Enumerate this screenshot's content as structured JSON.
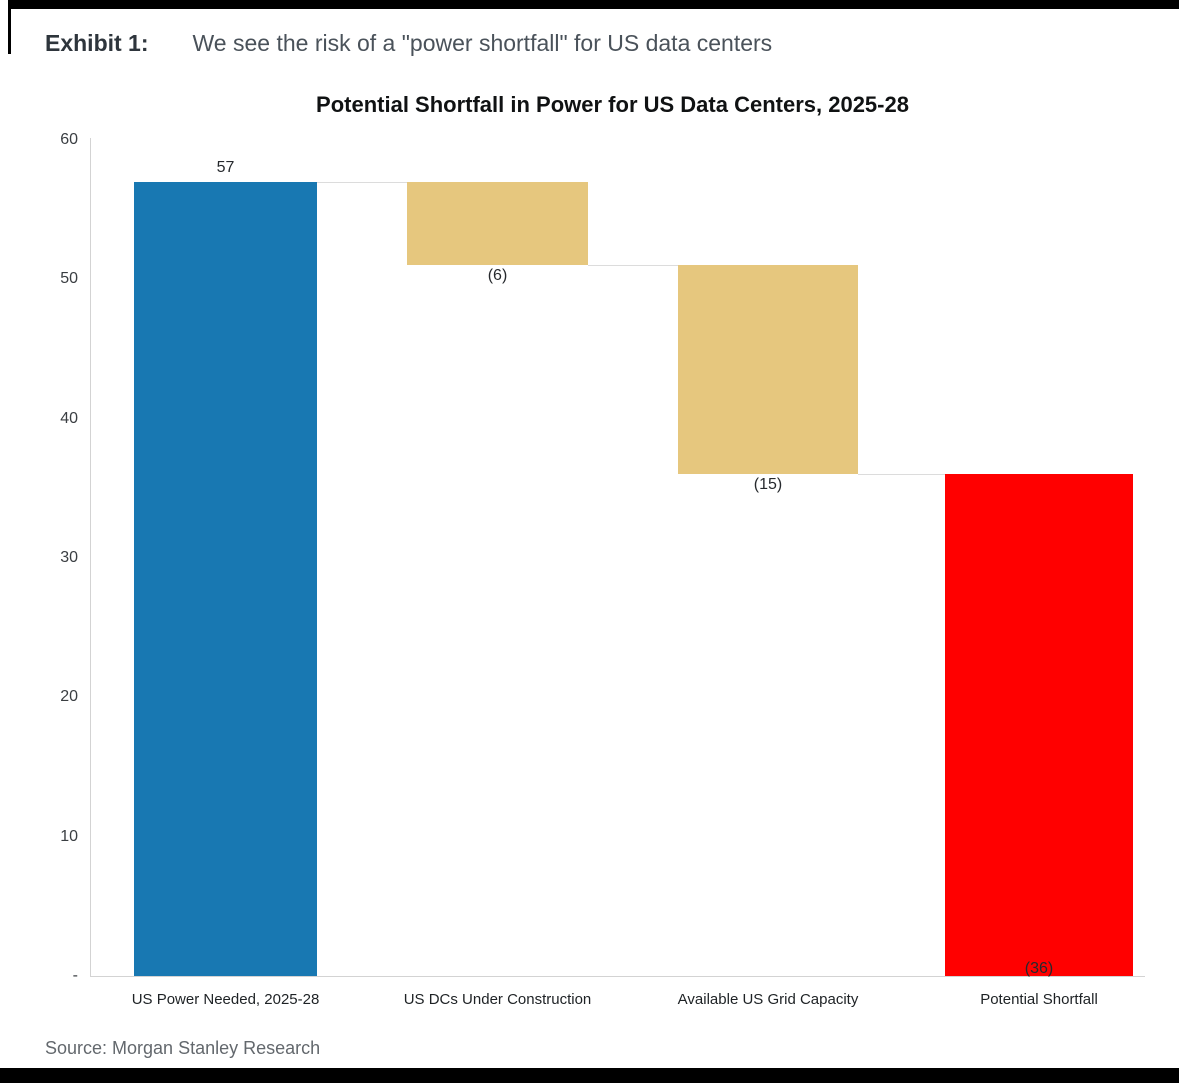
{
  "header": {
    "exhibit_label": "Exhibit 1:",
    "exhibit_title": "We see the risk of a \"power shortfall\" for US data centers"
  },
  "source_text": "Source: Morgan Stanley Research",
  "chart_data": {
    "type": "waterfall",
    "title": "Potential Shortfall in Power for US Data Centers, 2025-28",
    "categories": [
      "US Power Needed, 2025-28",
      "US DCs Under Construction",
      "Available US Grid Capacity",
      "Potential Shortfall"
    ],
    "values": [
      57,
      -6,
      -15,
      -36
    ],
    "value_labels": [
      "57",
      "(6)",
      "(15)",
      "(36)"
    ],
    "bar_roles": [
      "total-needed",
      "decrease",
      "decrease",
      "shortfall"
    ],
    "bar_colors": [
      "#1878b2",
      "#e6c77e",
      "#e6c77e",
      "#ff0000"
    ],
    "ylim": [
      0,
      60
    ],
    "yticks": [
      {
        "value": 60,
        "label": "60"
      },
      {
        "value": 50,
        "label": "50"
      },
      {
        "value": 40,
        "label": "40"
      },
      {
        "value": 30,
        "label": "30"
      },
      {
        "value": 20,
        "label": "20"
      },
      {
        "value": 10,
        "label": "10"
      },
      {
        "value": 0,
        "label": "-"
      }
    ],
    "grid": false,
    "legend": false
  }
}
